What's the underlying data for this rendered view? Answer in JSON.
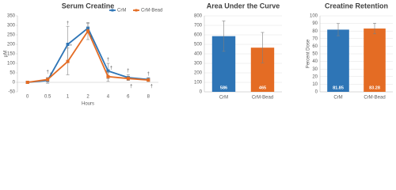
{
  "chart_data": [
    {
      "type": "line",
      "title": "Serum Creatine",
      "x_label": "Hours",
      "y_label": "μM",
      "categories": [
        "0",
        "0.5",
        "1",
        "2",
        "4",
        "6",
        "8"
      ],
      "series": [
        {
          "name": "CrM",
          "color": "#2e75b6",
          "values": [
            0,
            10,
            200,
            285,
            60,
            25,
            15
          ],
          "errors": [
            5,
            15,
            95,
            25,
            40,
            15,
            10
          ]
        },
        {
          "name": "CrM-Bead",
          "color": "#e46c24",
          "values": [
            0,
            15,
            110,
            270,
            30,
            20,
            12
          ],
          "errors": [
            5,
            10,
            70,
            45,
            25,
            10,
            8
          ]
        }
      ],
      "annotations": [
        {
          "text": "†",
          "x": "0.5",
          "y": 55,
          "color": "#2e75b6"
        },
        {
          "text": "†",
          "x": "1",
          "y": 310,
          "color": "#2e75b6"
        },
        {
          "text": "†",
          "x": "4",
          "y": 120,
          "color": "#2e75b6"
        },
        {
          "text": "†",
          "x": "6",
          "y": 60,
          "color": "#2e75b6"
        },
        {
          "text": "†",
          "x": "8",
          "y": 45,
          "color": "#2e75b6"
        },
        {
          "text": "†",
          "x": "0.5",
          "y": 40,
          "color": "#e46c24"
        },
        {
          "text": "*",
          "x": "1",
          "y": 190,
          "color": "#e46c24"
        },
        {
          "text": "†",
          "x": "2",
          "y": 235,
          "color": "#e46c24"
        },
        {
          "text": "†",
          "x": "4",
          "y": 75,
          "color": "#e46c24"
        },
        {
          "text": "†",
          "x": "6",
          "y": -20,
          "color": "#e46c24"
        },
        {
          "text": "†",
          "x": "8",
          "y": -20,
          "color": "#e46c24"
        }
      ],
      "ylim": [
        -50,
        350
      ],
      "yticks": [
        -50,
        0,
        50,
        100,
        150,
        200,
        250,
        300,
        350
      ],
      "grid": false,
      "legend": "top-right"
    },
    {
      "type": "bar",
      "title": "Area Under the Curve",
      "categories": [
        "CrM",
        "CrM-Bead"
      ],
      "values": [
        586,
        465
      ],
      "errors": [
        160,
        160
      ],
      "colors": [
        "#2e75b6",
        "#e46c24"
      ],
      "ylim": [
        0,
        800
      ],
      "yticks": [
        0,
        100,
        200,
        300,
        400,
        500,
        600,
        700,
        800
      ],
      "grid": true
    },
    {
      "type": "bar",
      "title": "Creatine Retention",
      "y_label": "Percent Dose",
      "categories": [
        "CrM",
        "CrM-Bead"
      ],
      "values": [
        81.85,
        83.28
      ],
      "errors": [
        8,
        7
      ],
      "colors": [
        "#2e75b6",
        "#e46c24"
      ],
      "ylim": [
        0,
        100
      ],
      "yticks": [
        0,
        10,
        20,
        30,
        40,
        50,
        60,
        70,
        80,
        90,
        100
      ],
      "grid": true
    }
  ]
}
